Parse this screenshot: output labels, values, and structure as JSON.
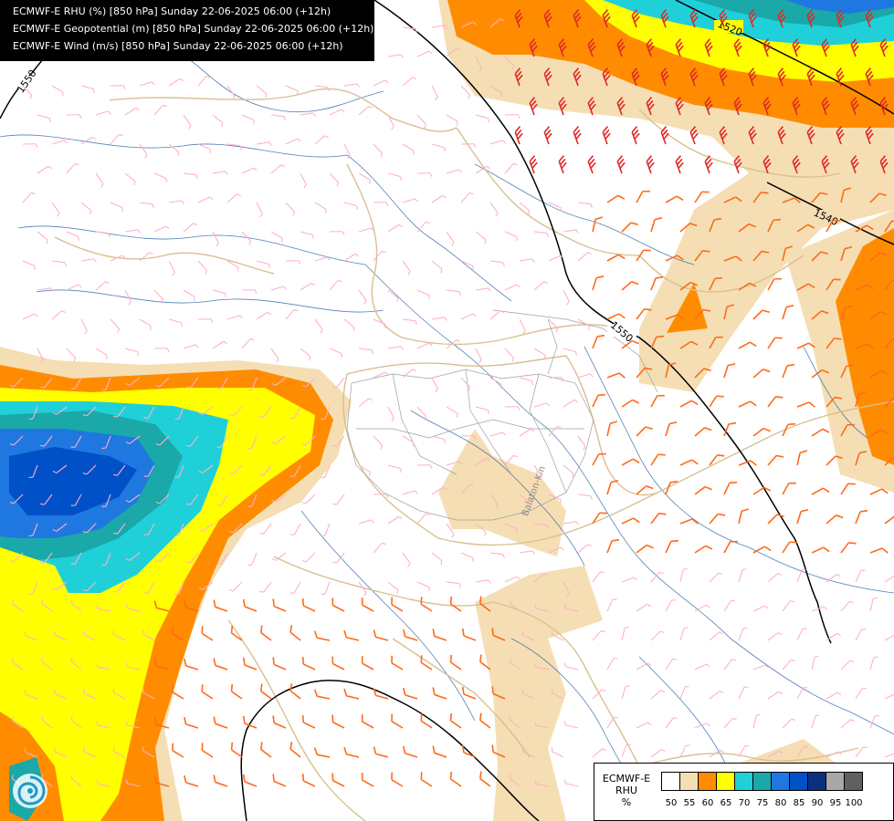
{
  "header": {
    "line1": "ECMWF-E RHU (%) [850 hPa] Sunday 22-06-2025 06:00 (+12h)",
    "line2": "ECMWF-E Geopotential (m) [850 hPa] Sunday 22-06-2025 06:00 (+12h)",
    "line3": "ECMWF-E Wind (m/s) [850 hPa] Sunday 22-06-2025 06:00 (+12h)"
  },
  "contours": {
    "label_1520": "1520",
    "label_1550_left": "1550",
    "label_1540": "1540",
    "label_1550_mid": "1550"
  },
  "places": {
    "lake": "Balaton-Kin"
  },
  "legend": {
    "title_line1": "ECMWF-E",
    "title_line2": "RHU",
    "title_line3": "%",
    "colors": [
      "#ffffff",
      "#f5deb3",
      "#ff8c00",
      "#ffff00",
      "#20d0d8",
      "#1aa8a8",
      "#1e78e0",
      "#0050c8",
      "#0a3080",
      "#a8a8a8",
      "#606060"
    ],
    "ticks": [
      "50",
      "55",
      "60",
      "65",
      "70",
      "75",
      "80",
      "85",
      "90",
      "95",
      "100"
    ]
  },
  "palette": {
    "wheat": "#f5deb3",
    "orange": "#ff8c00",
    "yellow": "#ffff00",
    "cyan": "#20d0d8",
    "teal": "#1aa8a8",
    "blue": "#1e78e0",
    "darkblue": "#0050c8",
    "border": "#d8c090",
    "river": "#2860a8",
    "contour": "#000000",
    "barb_light": "#ffb0c8",
    "barb_mid": "#ff6a1a",
    "barb_strong": "#e02828"
  },
  "logo_icon": "ecmwf-swirl-icon"
}
